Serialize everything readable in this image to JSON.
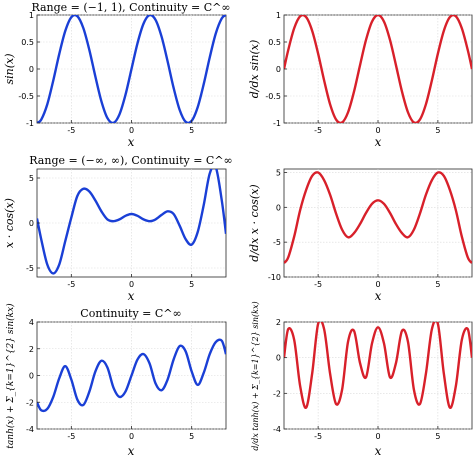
{
  "chart_data": [
    {
      "type": "line",
      "title": "Range = (−1, 1), Continuity = C^∞",
      "xlabel": "x",
      "ylabel": "sin(x)",
      "xlim": [
        -7.85,
        7.85
      ],
      "ylim": [
        -1,
        1
      ],
      "xticks": [
        -5,
        0,
        5
      ],
      "yticks": [
        -1,
        -0.5,
        0,
        0.5,
        1
      ],
      "grid": true,
      "series": [
        {
          "color": "#1a3fd6",
          "x": [
            -7.85,
            -7.5,
            -7.0,
            -6.5,
            -6.0,
            -5.5,
            -5.0,
            -4.5,
            -4.0,
            -3.5,
            -3.0,
            -2.5,
            -2.0,
            -1.5,
            -1.0,
            -0.5,
            0.0,
            0.5,
            1.0,
            1.5,
            2.0,
            2.5,
            3.0,
            3.5,
            4.0,
            4.5,
            5.0,
            5.5,
            6.0,
            6.5,
            7.0,
            7.5,
            7.85
          ],
          "y": [
            -1.0,
            -0.938,
            -0.657,
            -0.215,
            0.279,
            0.706,
            0.959,
            0.978,
            0.757,
            0.351,
            -0.141,
            -0.598,
            -0.909,
            -0.997,
            -0.841,
            -0.479,
            0.0,
            0.479,
            0.841,
            0.997,
            0.909,
            0.598,
            0.141,
            -0.351,
            -0.757,
            -0.978,
            -0.959,
            -0.706,
            -0.279,
            0.215,
            0.657,
            0.938,
            1.0
          ]
        }
      ]
    },
    {
      "type": "line",
      "title": "",
      "xlabel": "x",
      "ylabel": "d/dx sin(x)",
      "xlim": [
        -7.85,
        7.85
      ],
      "ylim": [
        -1,
        1
      ],
      "xticks": [
        -5,
        0,
        5
      ],
      "yticks": [
        -1,
        -0.5,
        0,
        0.5,
        1
      ],
      "grid": true,
      "series": [
        {
          "color": "#d8202a",
          "x": [
            -7.85,
            -7.5,
            -7.0,
            -6.5,
            -6.0,
            -5.5,
            -5.0,
            -4.5,
            -4.0,
            -3.5,
            -3.0,
            -2.5,
            -2.0,
            -1.5,
            -1.0,
            -0.5,
            0.0,
            0.5,
            1.0,
            1.5,
            2.0,
            2.5,
            3.0,
            3.5,
            4.0,
            4.5,
            5.0,
            5.5,
            6.0,
            6.5,
            7.0,
            7.5,
            7.85
          ],
          "y": [
            0.0,
            0.347,
            0.754,
            0.977,
            0.96,
            0.709,
            0.284,
            -0.211,
            -0.654,
            -0.936,
            -0.99,
            -0.801,
            -0.416,
            0.071,
            0.54,
            0.878,
            1.0,
            0.878,
            0.54,
            0.071,
            -0.416,
            -0.801,
            -0.99,
            -0.936,
            -0.654,
            -0.211,
            0.284,
            0.709,
            0.96,
            0.977,
            0.754,
            0.347,
            0.0
          ]
        }
      ]
    },
    {
      "type": "line",
      "title": "Range = (−∞, ∞), Continuity = C^∞",
      "xlabel": "x",
      "ylabel": "x · cos(x)",
      "xlim": [
        -7.85,
        7.85
      ],
      "ylim": [
        -6,
        6
      ],
      "xticks": [
        -5,
        0,
        5
      ],
      "yticks": [
        -5,
        0,
        5
      ],
      "grid": true,
      "series": [
        {
          "color": "#1a3fd6",
          "x": [
            -7.85,
            -7.5,
            -7.0,
            -6.5,
            -6.0,
            -5.5,
            -5.0,
            -4.5,
            -4.0,
            -3.5,
            -3.0,
            -2.5,
            -2.0,
            -1.5,
            -1.0,
            -0.5,
            0.0,
            0.5,
            1.0,
            1.5,
            2.0,
            2.5,
            3.0,
            3.5,
            4.0,
            4.5,
            5.0,
            5.5,
            6.0,
            6.5,
            7.0,
            7.5,
            7.85
          ],
          "y": [
            0.5,
            -1.8,
            -4.6,
            -5.6,
            -4.6,
            -2.0,
            0.6,
            3.0,
            3.8,
            3.5,
            2.5,
            1.3,
            0.4,
            0.2,
            0.4,
            0.8,
            1.0,
            0.8,
            0.4,
            0.2,
            0.4,
            0.9,
            1.3,
            1.0,
            -0.3,
            -1.8,
            -2.4,
            -1.0,
            2.0,
            5.5,
            6.2,
            2.5,
            -1.2
          ]
        }
      ]
    },
    {
      "type": "line",
      "title": "",
      "xlabel": "x",
      "ylabel": "d/dx x · cos(x)",
      "xlim": [
        -7.85,
        7.85
      ],
      "ylim": [
        -10,
        5.5
      ],
      "xticks": [
        -5,
        0,
        5
      ],
      "yticks": [
        -10,
        -5,
        0,
        5
      ],
      "grid": true,
      "series": [
        {
          "color": "#d8202a",
          "x": [
            -7.85,
            -7.5,
            -7.0,
            -6.5,
            -6.0,
            -5.5,
            -5.0,
            -4.5,
            -4.0,
            -3.5,
            -3.0,
            -2.5,
            -2.0,
            -1.5,
            -1.0,
            -0.5,
            0.0,
            0.5,
            1.0,
            1.5,
            2.0,
            2.5,
            3.0,
            3.5,
            4.0,
            4.5,
            5.0,
            5.5,
            6.0,
            6.5,
            7.0,
            7.5,
            7.85
          ],
          "y": [
            -8.0,
            -7.2,
            -4.2,
            -0.4,
            2.5,
            4.5,
            5.0,
            3.9,
            1.8,
            -0.9,
            -3.2,
            -4.3,
            -3.7,
            -2.4,
            -0.8,
            0.5,
            1.0,
            0.5,
            -0.8,
            -2.4,
            -3.7,
            -4.3,
            -3.2,
            -0.9,
            1.8,
            3.9,
            5.0,
            4.5,
            2.5,
            -0.4,
            -4.2,
            -7.2,
            -8.0
          ]
        }
      ]
    },
    {
      "type": "line",
      "title": "Continuity = C^∞",
      "xlabel": "x",
      "ylabel": "tanh(x) + Σ_{k=1}^{2} sin(kx)",
      "xlim": [
        -7.85,
        7.85
      ],
      "ylim": [
        -4,
        4
      ],
      "xticks": [
        -5,
        0,
        5
      ],
      "yticks": [
        -4,
        -2,
        0,
        2,
        4
      ],
      "grid": true,
      "series": [
        {
          "color": "#1a3fd6",
          "x": [
            -7.85,
            -7.5,
            -7.0,
            -6.5,
            -6.0,
            -5.5,
            -5.0,
            -4.5,
            -4.0,
            -3.5,
            -3.0,
            -2.5,
            -2.0,
            -1.5,
            -1.0,
            -0.5,
            0.0,
            0.5,
            1.0,
            1.5,
            2.0,
            2.5,
            3.0,
            3.5,
            4.0,
            4.5,
            5.0,
            5.5,
            6.0,
            6.5,
            7.0,
            7.5,
            7.85
          ],
          "y": [
            -2.0,
            -2.6,
            -2.5,
            -1.6,
            -0.2,
            0.7,
            -0.3,
            -1.8,
            -2.2,
            -1.2,
            0.3,
            1.1,
            0.6,
            -0.9,
            -1.6,
            -1.2,
            0.0,
            1.2,
            1.6,
            0.9,
            -0.6,
            -1.1,
            -0.3,
            1.2,
            2.2,
            1.8,
            0.3,
            -0.7,
            0.2,
            1.6,
            2.5,
            2.6,
            1.6
          ]
        }
      ]
    },
    {
      "type": "line",
      "title": "",
      "xlabel": "x",
      "ylabel": "d/dx tanh(x) + Σ_{k=1}^{2} sin(kx)",
      "xlim": [
        -7.85,
        7.85
      ],
      "ylim": [
        -4,
        2
      ],
      "xticks": [
        -5,
        0,
        5
      ],
      "yticks": [
        -4,
        -2,
        0,
        2
      ],
      "grid": true,
      "series": [
        {
          "color": "#d8202a",
          "x": [
            -7.85,
            -7.5,
            -7.0,
            -6.5,
            -6.0,
            -5.5,
            -5.0,
            -4.5,
            -4.0,
            -3.5,
            -3.0,
            -2.5,
            -2.0,
            -1.5,
            -1.0,
            -0.5,
            0.0,
            0.5,
            1.0,
            1.5,
            2.0,
            2.5,
            3.0,
            3.5,
            4.0,
            4.5,
            5.0,
            5.5,
            6.0,
            6.5,
            7.0,
            7.5,
            7.85
          ],
          "y": [
            0.0,
            1.6,
            1.0,
            -1.6,
            -2.8,
            -0.9,
            1.9,
            1.6,
            -0.9,
            -2.6,
            -1.8,
            0.9,
            1.5,
            -0.3,
            -1.1,
            0.8,
            1.7,
            0.8,
            -1.1,
            -0.3,
            1.5,
            0.9,
            -1.8,
            -2.6,
            -0.9,
            1.6,
            1.9,
            -0.9,
            -2.8,
            -1.6,
            1.0,
            1.6,
            0.0
          ]
        }
      ]
    }
  ]
}
